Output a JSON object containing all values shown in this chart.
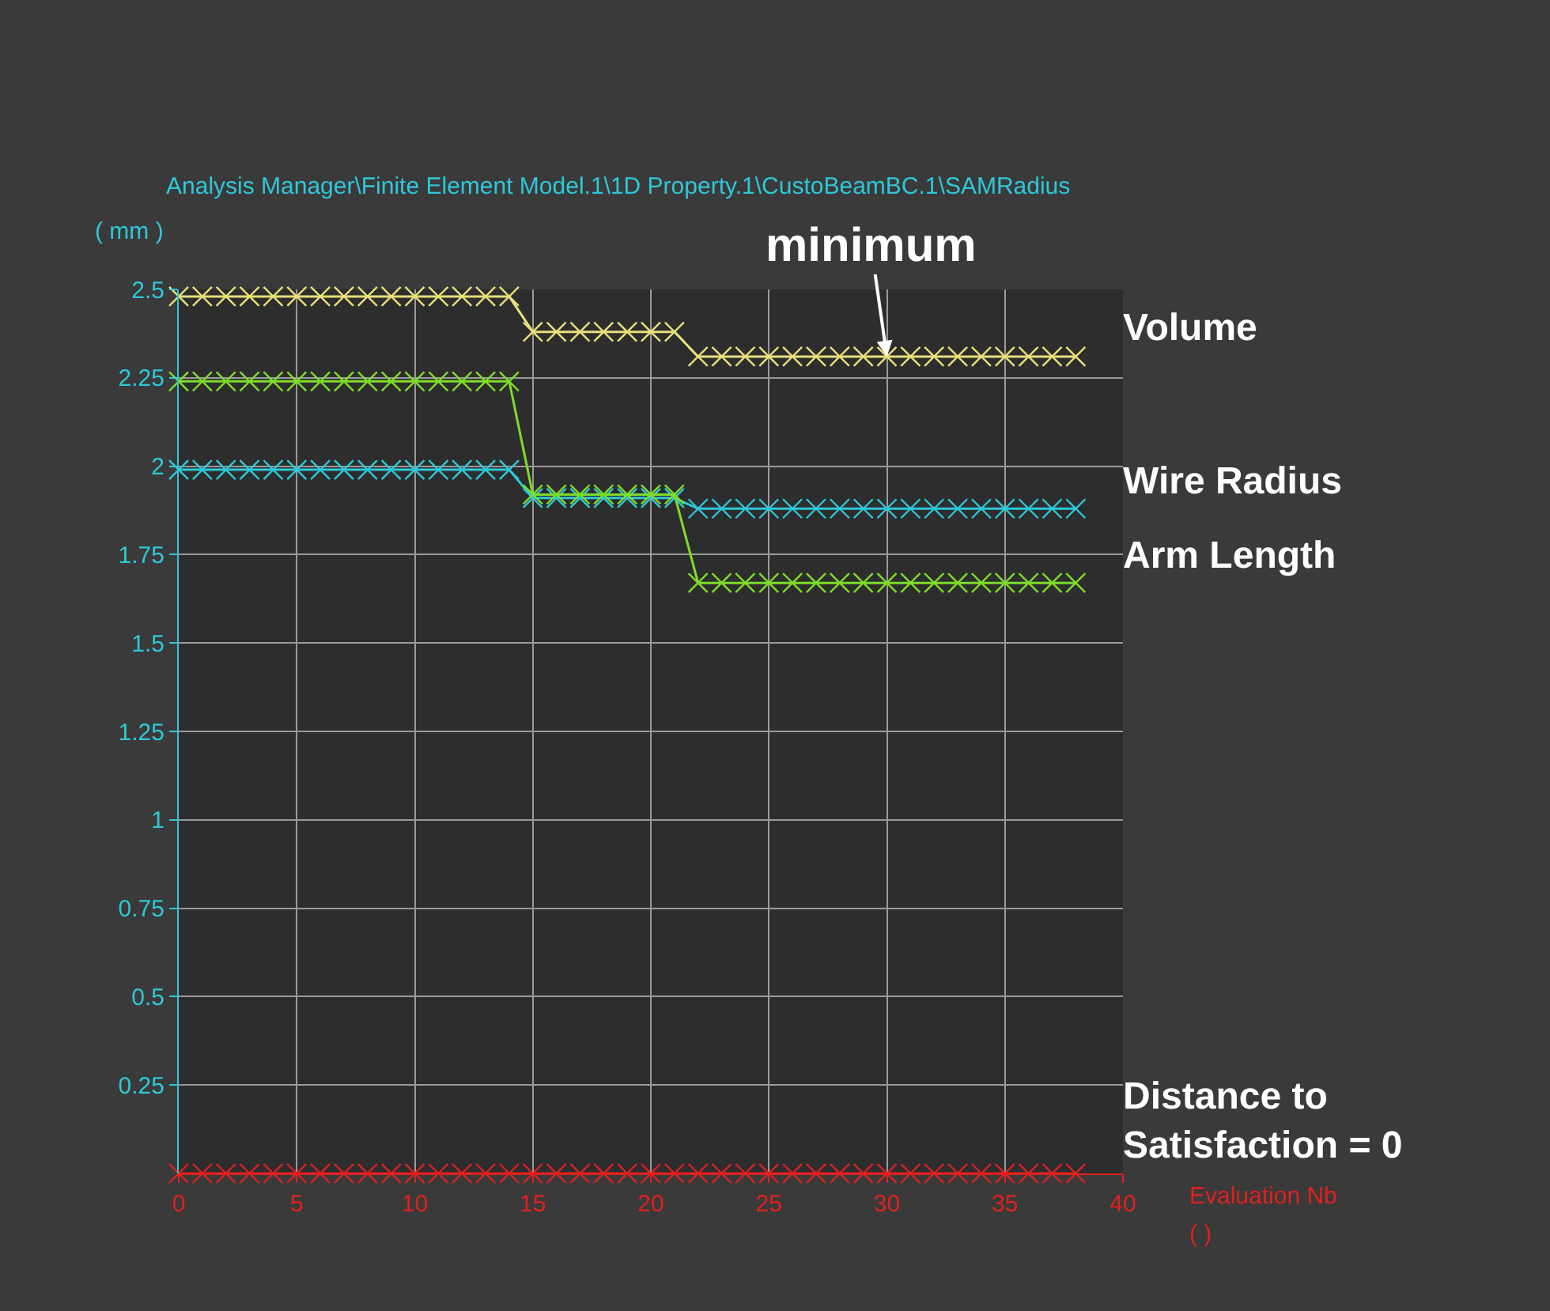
{
  "chart_data": {
    "type": "line",
    "title": "Analysis Manager\\Finite Element Model.1\\1D Property.1\\CustoBeamBC.1\\SAMRadius",
    "xlabel": "Evaluation Nb",
    "ylabel": "( mm )",
    "x": [
      0,
      1,
      2,
      3,
      4,
      5,
      6,
      7,
      8,
      9,
      10,
      11,
      12,
      13,
      14,
      15,
      16,
      17,
      18,
      19,
      20,
      21,
      22,
      23,
      24,
      25,
      26,
      27,
      28,
      29,
      30,
      31,
      32,
      33,
      34,
      35,
      36,
      37,
      38
    ],
    "series": [
      {
        "name": "Volume",
        "color": "#e8e07a",
        "values": [
          2.48,
          2.48,
          2.48,
          2.48,
          2.48,
          2.48,
          2.48,
          2.48,
          2.48,
          2.48,
          2.48,
          2.48,
          2.48,
          2.48,
          2.48,
          2.38,
          2.38,
          2.38,
          2.38,
          2.38,
          2.38,
          2.38,
          2.31,
          2.31,
          2.31,
          2.31,
          2.31,
          2.31,
          2.31,
          2.31,
          2.31,
          2.31,
          2.31,
          2.31,
          2.31,
          2.31,
          2.31,
          2.31,
          2.31
        ]
      },
      {
        "name": "Wire Radius",
        "color": "#2ec8d8",
        "values": [
          1.99,
          1.99,
          1.99,
          1.99,
          1.99,
          1.99,
          1.99,
          1.99,
          1.99,
          1.99,
          1.99,
          1.99,
          1.99,
          1.99,
          1.99,
          1.91,
          1.91,
          1.91,
          1.91,
          1.91,
          1.91,
          1.91,
          1.88,
          1.88,
          1.88,
          1.88,
          1.88,
          1.88,
          1.88,
          1.88,
          1.88,
          1.88,
          1.88,
          1.88,
          1.88,
          1.88,
          1.88,
          1.88,
          1.88
        ]
      },
      {
        "name": "Arm Length",
        "color": "#7fdc2a",
        "values": [
          2.24,
          2.24,
          2.24,
          2.24,
          2.24,
          2.24,
          2.24,
          2.24,
          2.24,
          2.24,
          2.24,
          2.24,
          2.24,
          2.24,
          2.24,
          1.92,
          1.92,
          1.92,
          1.92,
          1.92,
          1.92,
          1.92,
          1.67,
          1.67,
          1.67,
          1.67,
          1.67,
          1.67,
          1.67,
          1.67,
          1.67,
          1.67,
          1.67,
          1.67,
          1.67,
          1.67,
          1.67,
          1.67,
          1.67
        ]
      },
      {
        "name": "Distance to\nSatisfaction = 0",
        "color": "#e02020",
        "values": [
          0,
          0,
          0,
          0,
          0,
          0,
          0,
          0,
          0,
          0,
          0,
          0,
          0,
          0,
          0,
          0,
          0,
          0,
          0,
          0,
          0,
          0,
          0,
          0,
          0,
          0,
          0,
          0,
          0,
          0,
          0,
          0,
          0,
          0,
          0,
          0,
          0,
          0,
          0
        ]
      }
    ],
    "xlim": [
      0,
      40
    ],
    "xticks": [
      0,
      5,
      10,
      15,
      20,
      25,
      30,
      35,
      40
    ],
    "ylim": [
      0,
      2.5
    ],
    "yticks": [
      0.25,
      0.5,
      0.75,
      1,
      1.25,
      1.5,
      1.75,
      2,
      2.25,
      2.5
    ],
    "grid": true,
    "legend": false,
    "marker": "cross",
    "line_style": "solid",
    "annotations": [
      {
        "text": "minimum",
        "x": 30,
        "y": 2.31
      },
      "( )"
    ]
  }
}
